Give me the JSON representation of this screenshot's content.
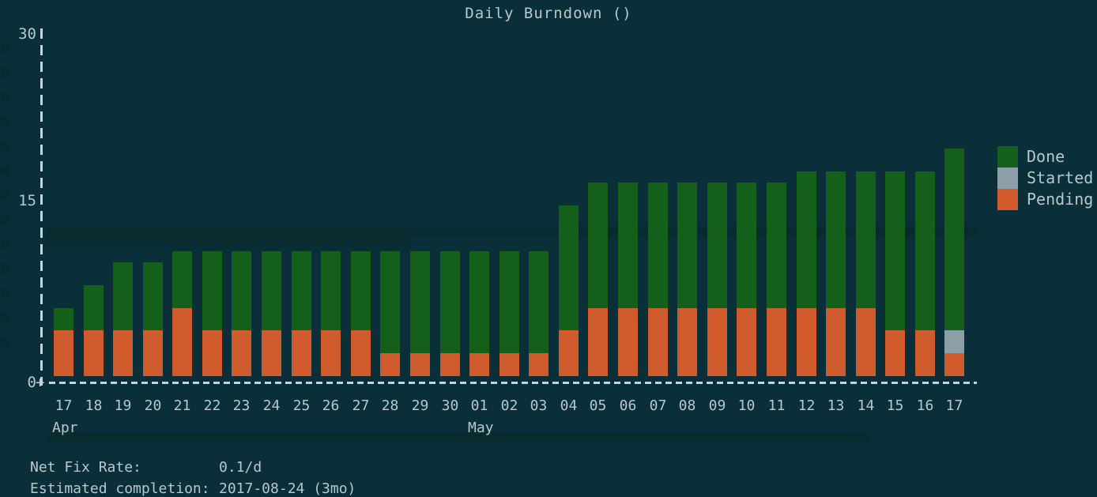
{
  "colors": {
    "background": "#0a2f39",
    "done": "#14601a",
    "started": "#8c9fa8",
    "pending": "#d05c2d",
    "axis": "#c9d4d7",
    "text": "#b9c7cb"
  },
  "axis": {
    "origin_glyph": "+"
  },
  "legend": {
    "position": "right",
    "items": [
      "Done",
      "Started",
      "Pending"
    ]
  },
  "footer": {
    "net_fix_rate": {
      "label": "Net Fix Rate:",
      "value": "0.1/d"
    },
    "estimated_completion": {
      "label": "Estimated completion:",
      "value": "2017-08-24 (3mo)"
    }
  },
  "chart_data": {
    "type": "bar",
    "stacked": true,
    "title": "Daily Burndown ()",
    "xlabel": "",
    "ylabel": "",
    "ylim": [
      0,
      30
    ],
    "y_ticks": [
      0,
      15,
      30
    ],
    "grid": false,
    "legend_position": "right",
    "categories": [
      "Apr 17",
      "Apr 18",
      "Apr 19",
      "Apr 20",
      "Apr 21",
      "Apr 22",
      "Apr 23",
      "Apr 24",
      "Apr 25",
      "Apr 26",
      "Apr 27",
      "Apr 28",
      "Apr 29",
      "Apr 30",
      "May 01",
      "May 02",
      "May 03",
      "May 04",
      "May 05",
      "May 06",
      "May 07",
      "May 08",
      "May 09",
      "May 10",
      "May 11",
      "May 12",
      "May 13",
      "May 14",
      "May 15",
      "May 16",
      "May 17"
    ],
    "x_tick_labels": [
      "17",
      "18",
      "19",
      "20",
      "21",
      "22",
      "23",
      "24",
      "25",
      "26",
      "27",
      "28",
      "29",
      "30",
      "01",
      "02",
      "03",
      "04",
      "05",
      "06",
      "07",
      "08",
      "09",
      "10",
      "11",
      "12",
      "13",
      "14",
      "15",
      "16",
      "17"
    ],
    "month_labels": [
      {
        "label": "Apr",
        "bar_index": 0
      },
      {
        "label": "May",
        "bar_index": 14
      }
    ],
    "series": [
      {
        "name": "Done",
        "color": "#14601a",
        "values": [
          2,
          4,
          6,
          6,
          5,
          7,
          7,
          7,
          7,
          7,
          7,
          9,
          9,
          9,
          9,
          9,
          9,
          11,
          11,
          11,
          11,
          11,
          11,
          11,
          11,
          12,
          12,
          12,
          14,
          14,
          16
        ]
      },
      {
        "name": "Started",
        "color": "#8c9fa8",
        "values": [
          0,
          0,
          0,
          0,
          0,
          0,
          0,
          0,
          0,
          0,
          0,
          0,
          0,
          0,
          0,
          0,
          0,
          0,
          0,
          0,
          0,
          0,
          0,
          0,
          0,
          0,
          0,
          0,
          0,
          0,
          2
        ]
      },
      {
        "name": "Pending",
        "color": "#d05c2d",
        "values": [
          4,
          4,
          4,
          4,
          6,
          4,
          4,
          4,
          4,
          4,
          4,
          2,
          2,
          2,
          2,
          2,
          2,
          4,
          6,
          6,
          6,
          6,
          6,
          6,
          6,
          6,
          6,
          6,
          4,
          4,
          2
        ]
      }
    ]
  }
}
